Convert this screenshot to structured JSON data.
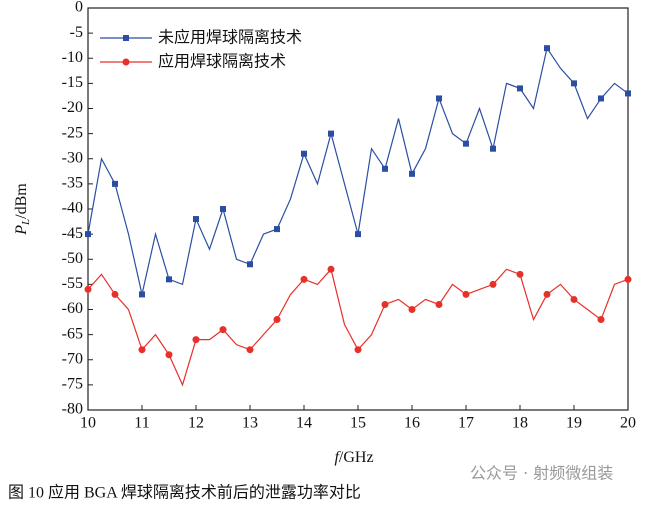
{
  "chart_data": {
    "type": "line",
    "xlabel": [
      "f",
      "/GHz"
    ],
    "ylabel": [
      "P",
      "L",
      "/dBm"
    ],
    "caption": "图 10   应用 BGA 焊球隔离技术前后的泄露功率对比",
    "watermark": "公众号 · 射频微组装",
    "x": [
      10,
      10.25,
      10.5,
      10.75,
      11,
      11.25,
      11.5,
      11.75,
      12,
      12.25,
      12.5,
      12.75,
      13,
      13.25,
      13.5,
      13.75,
      14,
      14.25,
      14.5,
      14.75,
      15,
      15.25,
      15.5,
      15.75,
      16,
      16.25,
      16.5,
      16.75,
      17,
      17.25,
      17.5,
      17.75,
      18,
      18.25,
      18.5,
      18.75,
      19,
      19.25,
      19.5,
      19.75,
      20
    ],
    "series": [
      {
        "name": "未应用焊球隔离技术",
        "color": "#2b4ea2",
        "marker": "square",
        "values": [
          -45,
          -30,
          -35,
          -45,
          -57,
          -45,
          -54,
          -55,
          -42,
          -48,
          -40,
          -50,
          -51,
          -45,
          -44,
          -38,
          -29,
          -35,
          -25,
          -35,
          -45,
          -28,
          -32,
          -22,
          -33,
          -28,
          -18,
          -25,
          -27,
          -20,
          -28,
          -15,
          -16,
          -20,
          -8,
          -12,
          -15,
          -22,
          -18,
          -15,
          -17
        ]
      },
      {
        "name": "应用焊球隔离技术",
        "color": "#e8302a",
        "marker": "circle",
        "values": [
          -56,
          -53,
          -57,
          -60,
          -68,
          -65,
          -69,
          -75,
          -66,
          -66,
          -64,
          -67,
          -68,
          -65,
          -62,
          -57,
          -54,
          -55,
          -52,
          -63,
          -68,
          -65,
          -59,
          -58,
          -60,
          -58,
          -59,
          -55,
          -57,
          -56,
          -55,
          -52,
          -53,
          -62,
          -57,
          -55,
          -58,
          -60,
          -62,
          -55,
          -54
        ]
      }
    ],
    "xlim": [
      10,
      20
    ],
    "xticks": [
      10,
      11,
      12,
      13,
      14,
      15,
      16,
      17,
      18,
      19,
      20
    ],
    "ylim": [
      -80,
      0
    ],
    "yticks": [
      0,
      -5,
      -10,
      -15,
      -20,
      -25,
      -30,
      -35,
      -40,
      -45,
      -50,
      -55,
      -60,
      -65,
      -70,
      -75,
      -80
    ],
    "legend": "upper left"
  }
}
